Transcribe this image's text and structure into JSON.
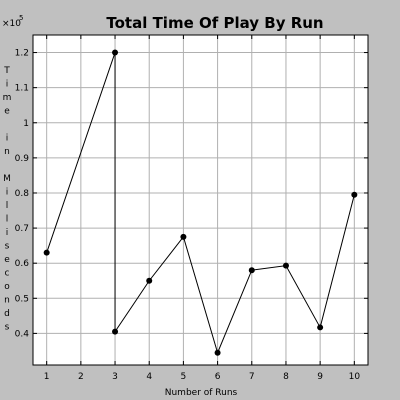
{
  "chart_data": {
    "type": "line",
    "title": "Total Time Of Play By Run",
    "xlabel": "Number of Runs",
    "ylabel": "Time in Milliseconds",
    "ylabel_chars": [
      "T",
      "i",
      "m",
      "e",
      "",
      "i",
      "n",
      "",
      "M",
      "i",
      "l",
      "l",
      "i",
      "s",
      "e",
      "c",
      "o",
      "n",
      "d",
      "s"
    ],
    "y_multiplier": "×10",
    "y_multiplier_exp": "5",
    "xlim": [
      0.6,
      10.4
    ],
    "ylim": [
      0.31,
      1.25
    ],
    "x_ticks": [
      1,
      2,
      3,
      4,
      5,
      6,
      7,
      8,
      9,
      10
    ],
    "y_ticks": [
      0.4,
      0.5,
      0.6,
      0.7,
      0.8,
      0.9,
      1.0,
      1.1,
      1.2
    ],
    "x_tick_labels": [
      "1",
      "2",
      "3",
      "4",
      "5",
      "6",
      "7",
      "8",
      "9",
      "10"
    ],
    "y_tick_labels": [
      "0.4",
      "0.5",
      "0.6",
      "0.7",
      "0.8",
      "0.9",
      "1",
      "1.1",
      "1.2"
    ],
    "grid": true,
    "series": [
      {
        "x": [
          1,
          3,
          3,
          4,
          5,
          6,
          7,
          8,
          9,
          10
        ],
        "y": [
          0.63,
          1.2,
          0.405,
          0.55,
          0.675,
          0.345,
          0.58,
          0.593,
          0.417,
          0.795
        ]
      }
    ],
    "colors": {
      "background": "#c0c0c0",
      "plot_bg": "#ffffff",
      "grid": "#b0b0b0",
      "line": "#000000"
    }
  }
}
